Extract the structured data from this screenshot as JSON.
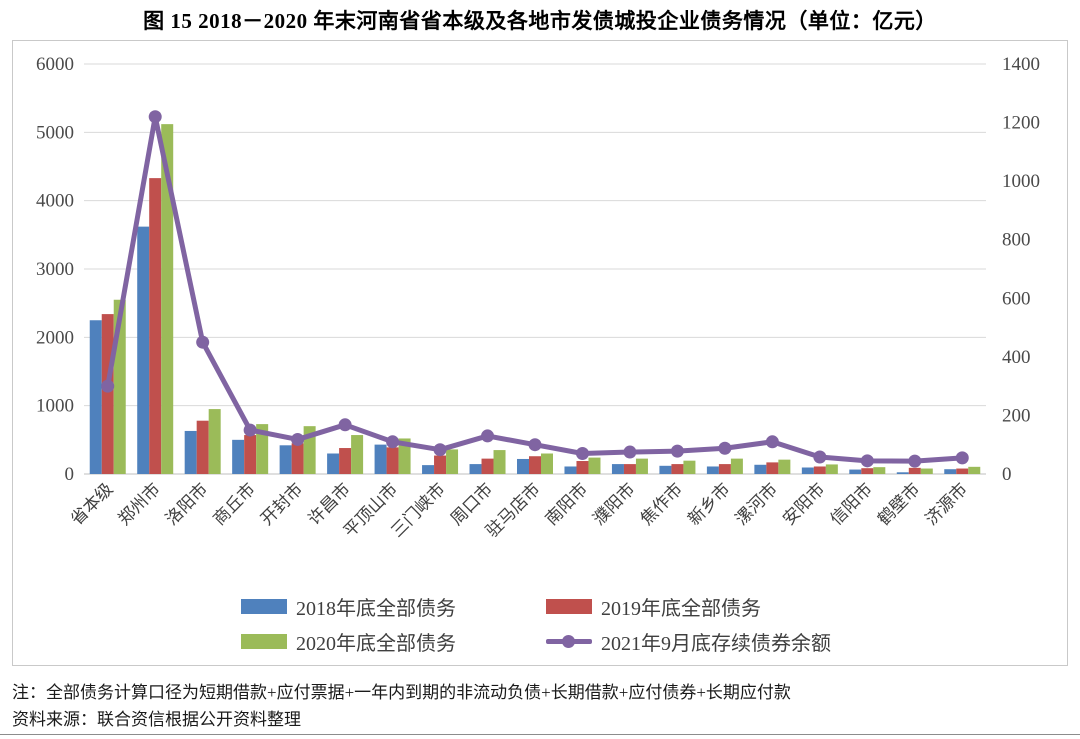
{
  "title": "图 15  2018－2020 年末河南省省本级及各地市发债城投企业债务情况（单位：亿元）",
  "notes": {
    "note": "注：全部债务计算口径为短期借款+应付票据+一年内到期的非流动负债+长期借款+应付债券+长期应付款",
    "source": "资料来源：联合资信根据公开资料整理"
  },
  "colors": {
    "bar_2018": "#4F81BD",
    "bar_2019": "#C0504D",
    "bar_2020": "#9BBB59",
    "line_2021": "#8064A2",
    "gridline": "#D9D9D9",
    "axis_line": "#BFBFBF",
    "axis_text": "#4a4a4a"
  },
  "chart_data": {
    "type": "bar",
    "title": "图 15  2018－2020 年末河南省省本级及各地市发债城投企业债务情况（单位：亿元）",
    "categories": [
      "省本级",
      "郑州市",
      "洛阳市",
      "商丘市",
      "开封市",
      "许昌市",
      "平顶山市",
      "三门峡市",
      "周口市",
      "驻马店市",
      "南阳市",
      "濮阳市",
      "焦作市",
      "新乡市",
      "漯河市",
      "安阳市",
      "信阳市",
      "鹤壁市",
      "济源市"
    ],
    "series": [
      {
        "name": "2018年底全部债务",
        "type": "bar",
        "axis": "left",
        "color": "#4F81BD",
        "values": [
          2250,
          3620,
          630,
          500,
          420,
          300,
          430,
          130,
          145,
          220,
          110,
          145,
          120,
          110,
          135,
          95,
          65,
          25,
          70
        ]
      },
      {
        "name": "2019年底全部债务",
        "type": "bar",
        "axis": "left",
        "color": "#C0504D",
        "values": [
          2340,
          4330,
          780,
          570,
          450,
          380,
          390,
          270,
          225,
          260,
          190,
          145,
          145,
          145,
          170,
          110,
          85,
          90,
          80
        ]
      },
      {
        "name": "2020年底全部债务",
        "type": "bar",
        "axis": "left",
        "color": "#9BBB59",
        "values": [
          2550,
          5120,
          950,
          730,
          700,
          570,
          520,
          360,
          350,
          300,
          240,
          225,
          195,
          225,
          210,
          140,
          100,
          80,
          105
        ]
      },
      {
        "name": "2021年9月底存续债券余额",
        "type": "line",
        "axis": "right",
        "color": "#8064A2",
        "values": [
          300,
          1220,
          450,
          150,
          118,
          168,
          110,
          83,
          130,
          100,
          70,
          75,
          78,
          88,
          110,
          58,
          45,
          44,
          55
        ]
      }
    ],
    "left_axis": {
      "min": 0,
      "max": 6000,
      "step": 1000,
      "ticks": [
        0,
        1000,
        2000,
        3000,
        4000,
        5000,
        6000
      ]
    },
    "right_axis": {
      "min": 0,
      "max": 1400,
      "step": 200,
      "ticks": [
        0,
        200,
        400,
        600,
        800,
        1000,
        1200,
        1400
      ]
    },
    "grid": true,
    "legend_position": "bottom",
    "unit": "亿元"
  }
}
